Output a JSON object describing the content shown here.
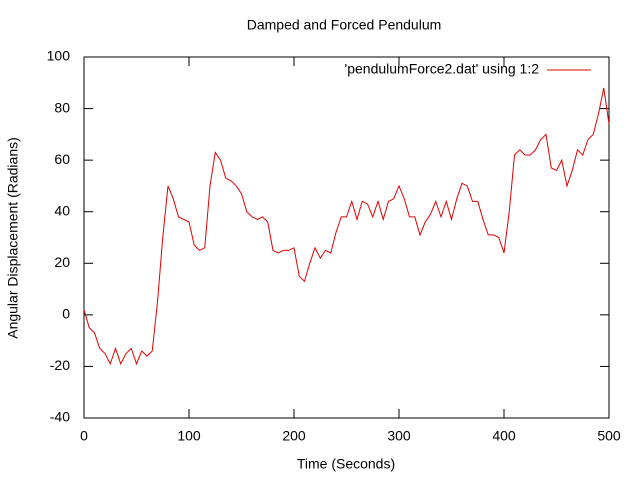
{
  "chart_data": {
    "type": "line",
    "title": "Damped and Forced Pendulum",
    "xlabel": "Time (Seconds)",
    "ylabel": "Angular Displacement (Radians)",
    "legend": "top-right",
    "xlim": [
      0,
      500
    ],
    "xticks": [
      0,
      100,
      200,
      300,
      400,
      500
    ],
    "ylim": [
      -40,
      100
    ],
    "yticks": [
      -40,
      -20,
      0,
      20,
      40,
      60,
      80,
      100
    ],
    "x": [
      0,
      5,
      10,
      15,
      20,
      25,
      30,
      35,
      40,
      45,
      50,
      55,
      60,
      65,
      70,
      75,
      80,
      85,
      90,
      95,
      100,
      105,
      110,
      115,
      120,
      125,
      130,
      135,
      140,
      145,
      150,
      155,
      160,
      165,
      170,
      175,
      180,
      185,
      190,
      195,
      200,
      205,
      210,
      215,
      220,
      225,
      230,
      235,
      240,
      245,
      250,
      255,
      260,
      265,
      270,
      275,
      280,
      285,
      290,
      295,
      300,
      305,
      310,
      315,
      320,
      325,
      330,
      335,
      340,
      345,
      350,
      355,
      360,
      365,
      370,
      375,
      380,
      385,
      390,
      395,
      400,
      405,
      410,
      415,
      420,
      425,
      430,
      435,
      440,
      445,
      450,
      455,
      460,
      465,
      470,
      475,
      480,
      485,
      490,
      495,
      500
    ],
    "series": [
      {
        "name": "'pendulumForce2.dat' using 1:2",
        "color": "#e00000",
        "values": [
          2,
          -5,
          -7,
          -13,
          -15,
          -19,
          -13,
          -19,
          -15,
          -13,
          -19,
          -14,
          -16,
          -14,
          5,
          30,
          50,
          45,
          38,
          37,
          36,
          27,
          25,
          26,
          50,
          63,
          60,
          53,
          52,
          50,
          47,
          40,
          38,
          37,
          38,
          36,
          25,
          24,
          25,
          25,
          26,
          15,
          13,
          20,
          26,
          22,
          25,
          24,
          32,
          38,
          38,
          44,
          37,
          44,
          43,
          38,
          44,
          37,
          44,
          45,
          50,
          45,
          38,
          38,
          31,
          36,
          39,
          44,
          38,
          44,
          37,
          45,
          51,
          50,
          44,
          44,
          37,
          31,
          31,
          30,
          24,
          40,
          62,
          64,
          62,
          62,
          64,
          68,
          70,
          57,
          56,
          60,
          50,
          56,
          64,
          62,
          68,
          70,
          78,
          88,
          74
        ]
      }
    ]
  }
}
